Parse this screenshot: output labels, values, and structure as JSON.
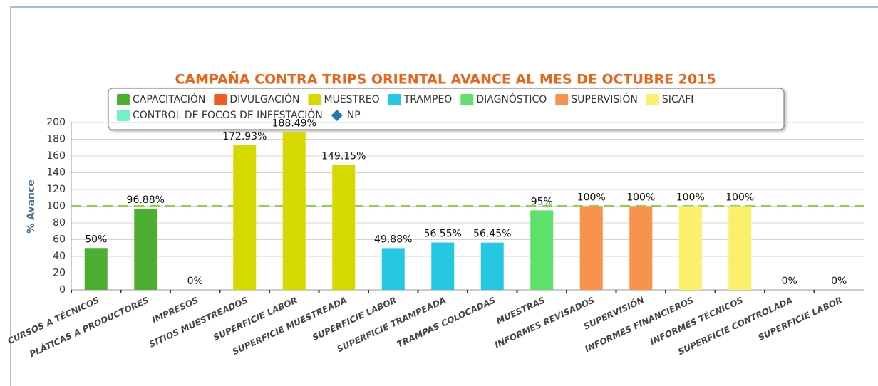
{
  "chart_data": {
    "type": "bar",
    "title": "CAMPAÑA CONTRA TRIPS ORIENTAL AVANCE AL MES DE OCTUBRE 2015",
    "y_label": "% Avance",
    "categories": [
      "CURSOS A TÉCNICOS",
      "PLÁTICAS A PRODUCTORES",
      "IMPRESOS",
      "SITIOS MUESTREADOS",
      "SUPERFICIE LABOR",
      "SUPERFICIE MUESTREADA",
      "SUPERFICIE LABOR",
      "SUPERFICIE TRAMPEADA",
      "TRAMPAS COLOCADAS",
      "MUESTRAS",
      "INFORMES REVISADOS",
      "SUPERVISIÓN",
      "INFORMES FINANCIEROS",
      "INFORMES TÉCNICOS",
      "SUPERFICIE CONTROLADA",
      "SUPERFICIE LABOR"
    ],
    "series": [
      {
        "name": "CAPACITACIÓN",
        "color": "#4caf32",
        "values": [
          50,
          96.88,
          null,
          null,
          null,
          null,
          null,
          null,
          null,
          null,
          null,
          null,
          null,
          null,
          null,
          null
        ],
        "value_labels": [
          "50%",
          "96.88%",
          null,
          null,
          null,
          null,
          null,
          null,
          null,
          null,
          null,
          null,
          null,
          null,
          null,
          null
        ]
      },
      {
        "name": "DIVULGACIÓN",
        "color": "#f05a23",
        "values": [
          null,
          null,
          0,
          null,
          null,
          null,
          null,
          null,
          null,
          null,
          null,
          null,
          null,
          null,
          null,
          null
        ],
        "value_labels": [
          null,
          null,
          "0%",
          null,
          null,
          null,
          null,
          null,
          null,
          null,
          null,
          null,
          null,
          null,
          null,
          null
        ]
      },
      {
        "name": "MUESTREO",
        "color": "#d6d900",
        "values": [
          null,
          null,
          null,
          172.93,
          188.49,
          149.15,
          null,
          null,
          null,
          null,
          null,
          null,
          null,
          null,
          null,
          null
        ],
        "value_labels": [
          null,
          null,
          null,
          "172.93%",
          "188.49%",
          "149.15%",
          null,
          null,
          null,
          null,
          null,
          null,
          null,
          null,
          null,
          null
        ]
      },
      {
        "name": "TRAMPEO",
        "color": "#25c7e2",
        "values": [
          null,
          null,
          null,
          null,
          null,
          null,
          49.88,
          56.55,
          56.45,
          null,
          null,
          null,
          null,
          null,
          null,
          null
        ],
        "value_labels": [
          null,
          null,
          null,
          null,
          null,
          null,
          "49.88%",
          "56.55%",
          "56.45%",
          null,
          null,
          null,
          null,
          null,
          null,
          null
        ]
      },
      {
        "name": "DIAGNÓSTICO",
        "color": "#5fe06b",
        "values": [
          null,
          null,
          null,
          null,
          null,
          null,
          null,
          null,
          null,
          95,
          null,
          null,
          null,
          null,
          null,
          null
        ],
        "value_labels": [
          null,
          null,
          null,
          null,
          null,
          null,
          null,
          null,
          null,
          "95%",
          null,
          null,
          null,
          null,
          null,
          null
        ]
      },
      {
        "name": "SUPERVISIÓN",
        "color": "#f8924f",
        "values": [
          null,
          null,
          null,
          null,
          null,
          null,
          null,
          null,
          null,
          null,
          100,
          100,
          null,
          null,
          null,
          null
        ],
        "value_labels": [
          null,
          null,
          null,
          null,
          null,
          null,
          null,
          null,
          null,
          null,
          "100%",
          "100%",
          null,
          null,
          null,
          null
        ]
      },
      {
        "name": "SICAFI",
        "color": "#fcef6c",
        "values": [
          null,
          null,
          null,
          null,
          null,
          null,
          null,
          null,
          null,
          null,
          null,
          null,
          100,
          100,
          null,
          null
        ],
        "value_labels": [
          null,
          null,
          null,
          null,
          null,
          null,
          null,
          null,
          null,
          null,
          null,
          null,
          "100%",
          "100%",
          null,
          null
        ]
      },
      {
        "name": "CONTROL DE FOCOS DE INFESTACIÓN",
        "color": "#6ff3c6",
        "values": [
          null,
          null,
          null,
          null,
          null,
          null,
          null,
          null,
          null,
          null,
          null,
          null,
          null,
          null,
          0,
          0
        ],
        "value_labels": [
          null,
          null,
          null,
          null,
          null,
          null,
          null,
          null,
          null,
          null,
          null,
          null,
          null,
          null,
          "0%",
          "0%"
        ]
      },
      {
        "name": "NP",
        "color": "#1f77b4",
        "marker": "diamond",
        "values": [
          null,
          null,
          null,
          null,
          null,
          null,
          null,
          null,
          null,
          null,
          null,
          null,
          null,
          null,
          null,
          null
        ]
      }
    ],
    "reference_line": {
      "value": 100,
      "color": "#8fd14f"
    },
    "ylim": [
      0,
      200
    ],
    "yticks": [
      0,
      20,
      40,
      60,
      80,
      100,
      120,
      140,
      160,
      180,
      200
    ],
    "grid": true
  }
}
